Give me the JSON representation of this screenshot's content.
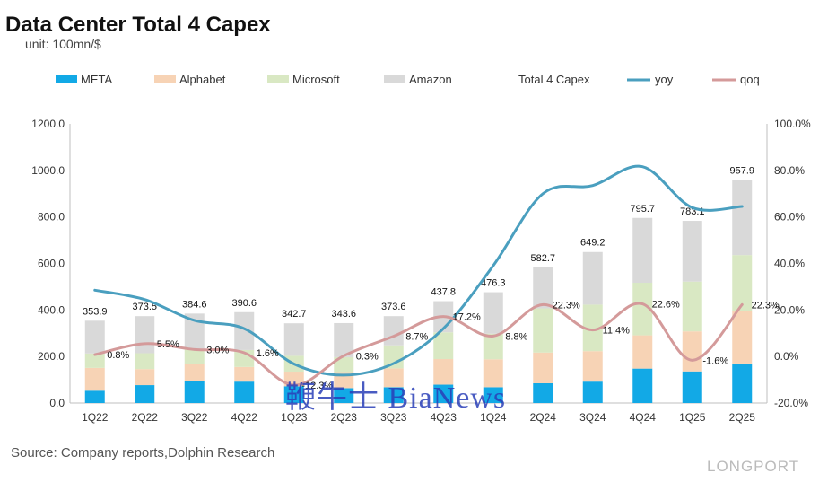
{
  "chart_data": {
    "type": "bar",
    "title": "Data Center Total 4 Capex",
    "subtitle": "unit: 100mn/$",
    "source": "Source: Company reports,Dolphin Research",
    "categories": [
      "1Q22",
      "2Q22",
      "3Q22",
      "4Q22",
      "1Q23",
      "2Q23",
      "3Q23",
      "4Q23",
      "1Q24",
      "2Q24",
      "3Q24",
      "4Q24",
      "1Q25",
      "2Q25"
    ],
    "series": [
      {
        "name": "META",
        "color": "#12a9e6",
        "values": [
          53,
          77,
          95,
          92,
          72,
          64,
          68,
          79,
          68,
          85,
          92,
          148,
          136,
          170
        ]
      },
      {
        "name": "Alphabet",
        "color": "#f7d3b5",
        "values": [
          98,
          69,
          72,
          63,
          63,
          69,
          81,
          110,
          120,
          132,
          131,
          143,
          172,
          224
        ]
      },
      {
        "name": "Microsoft",
        "color": "#d9e8c3",
        "values": [
          62,
          68,
          66,
          73,
          68,
          64,
          99,
          115,
          110,
          190,
          200,
          226,
          214,
          242
        ]
      },
      {
        "name": "Amazon",
        "color": "#d9d9d9",
        "values": [
          140.9,
          159.5,
          151.6,
          162.6,
          139.7,
          146.6,
          125.6,
          133.8,
          178.3,
          175.7,
          226.2,
          278.7,
          261.1,
          321.9
        ]
      }
    ],
    "totals": {
      "name": "Total 4 Capex",
      "values": [
        353.9,
        373.5,
        384.6,
        390.6,
        342.7,
        343.6,
        373.6,
        437.8,
        476.3,
        582.7,
        649.2,
        795.7,
        783.1,
        957.9
      ],
      "labels": [
        "353.9",
        "373.5",
        "384.6",
        "390.6",
        "342.7",
        "343.6",
        "373.6",
        "437.8",
        "476.3",
        "582.7",
        "649.2",
        "795.7",
        "783.1",
        "957.9"
      ]
    },
    "lines": [
      {
        "name": "yoy",
        "color": "#4a9fbf",
        "axis": "right",
        "values": [
          28.5,
          24.5,
          15.5,
          12,
          -3.2,
          -8,
          -3,
          12,
          39,
          70,
          73.5,
          81.6,
          64,
          64.5
        ]
      },
      {
        "name": "qoq",
        "color": "#d49a9a",
        "axis": "right",
        "values": [
          0.8,
          5.5,
          3.0,
          1.6,
          -12.3,
          0.3,
          8.7,
          17.2,
          8.8,
          22.3,
          11.4,
          22.6,
          -1.6,
          22.3
        ],
        "labels": [
          "0.8%",
          "5.5%",
          "3.0%",
          "1.6%",
          "-12.3%",
          "0.3%",
          "8.7%",
          "17.2%",
          "8.8%",
          "22.3%",
          "11.4%",
          "22.6%",
          "-1.6%",
          "22.3%"
        ]
      }
    ],
    "left_axis": {
      "ylim": [
        0,
        1200
      ],
      "ticks": [
        "0.0",
        "200.0",
        "400.0",
        "600.0",
        "800.0",
        "1000.0",
        "1200.0"
      ]
    },
    "right_axis": {
      "ylim": [
        -20,
        100
      ],
      "ticks": [
        "-20.0%",
        "0.0%",
        "20.0%",
        "40.0%",
        "60.0%",
        "80.0%",
        "100.0%"
      ]
    },
    "legend": [
      "META",
      "Alphabet",
      "Microsoft",
      "Amazon",
      "Total 4 Capex",
      "yoy",
      "qoq"
    ],
    "legend_position": "top"
  },
  "watermarks": {
    "news": "鞭牛士 BiaNews",
    "longport": "LONGPORT"
  }
}
